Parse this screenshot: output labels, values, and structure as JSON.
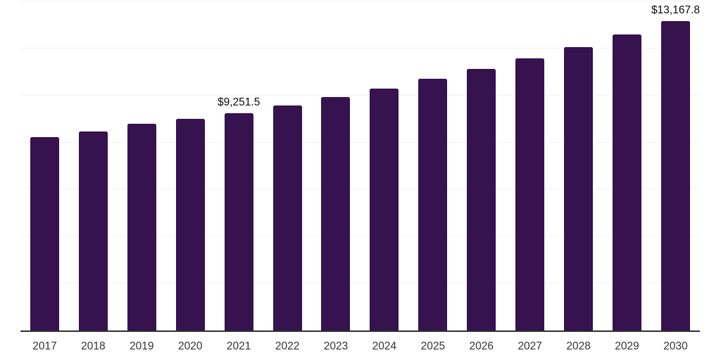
{
  "chart_data": {
    "type": "bar",
    "title": "",
    "xlabel": "",
    "ylabel": "",
    "categories": [
      "2017",
      "2018",
      "2019",
      "2020",
      "2021",
      "2022",
      "2023",
      "2024",
      "2025",
      "2026",
      "2027",
      "2028",
      "2029",
      "2030"
    ],
    "values": [
      8235,
      8475,
      8805,
      8995,
      9251.5,
      9575,
      9940,
      10300,
      10700,
      11120,
      11570,
      12045,
      12595,
      13167.8
    ],
    "ylim": [
      0,
      14000
    ],
    "grid_interval": 2000,
    "grid": true,
    "legend": false,
    "annotations": [
      {
        "index": 4,
        "category": "2021",
        "label": "$9,251.5"
      },
      {
        "index": 13,
        "category": "2030",
        "label": "$13,167.8"
      }
    ],
    "colors": {
      "bar": "#36124F",
      "gridline": "#f2f2f4",
      "axis_line": "#2e2e2e",
      "x_label_text": "#333333",
      "annotation_text": "#0a0a0a",
      "background": "#ffffff"
    }
  }
}
